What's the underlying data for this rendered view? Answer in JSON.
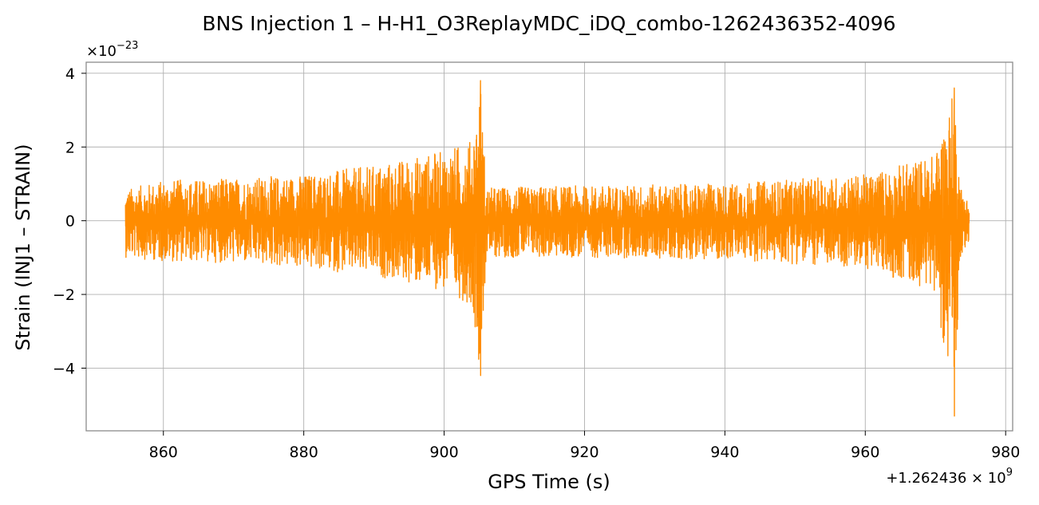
{
  "chart_data": {
    "type": "line",
    "title": "BNS Injection 1 – H-H1_O3ReplayMDC_iDQ_combo-1262436352-4096",
    "xlabel": "GPS Time (s)",
    "ylabel": "Strain (INJ1 – STRAIN)",
    "x_offset_label": {
      "base": "+1.262436 × 10",
      "exponent": "9"
    },
    "y_scale_label": {
      "base": "×10",
      "exponent": "−23"
    },
    "xlim": [
      849,
      981
    ],
    "ylim": [
      -5.7,
      4.3
    ],
    "x_ticks": [
      {
        "value": 860,
        "label": "860"
      },
      {
        "value": 880,
        "label": "880"
      },
      {
        "value": 900,
        "label": "900"
      },
      {
        "value": 920,
        "label": "920"
      },
      {
        "value": 940,
        "label": "940"
      },
      {
        "value": 960,
        "label": "960"
      },
      {
        "value": 980,
        "label": "980"
      }
    ],
    "y_ticks": [
      {
        "value": 4,
        "label": "4"
      },
      {
        "value": 2,
        "label": "2"
      },
      {
        "value": 0,
        "label": "0"
      },
      {
        "value": -2,
        "label": "−2"
      },
      {
        "value": -4,
        "label": "−4"
      }
    ],
    "grid": true,
    "series": [
      {
        "color": "#ff8c00",
        "x_range": [
          854.6,
          974.8
        ],
        "envelope": [
          {
            "x": 854.6,
            "upper": 0.85,
            "lower": -1.0
          },
          {
            "x": 860,
            "upper": 1.1,
            "lower": -1.1
          },
          {
            "x": 870,
            "upper": 1.15,
            "lower": -1.15
          },
          {
            "x": 880,
            "upper": 1.25,
            "lower": -1.3
          },
          {
            "x": 890,
            "upper": 1.5,
            "lower": -1.5
          },
          {
            "x": 900,
            "upper": 1.9,
            "lower": -1.9
          },
          {
            "x": 904,
            "upper": 2.2,
            "lower": -2.3
          },
          {
            "x": 905.2,
            "upper": 3.8,
            "lower": -4.2
          },
          {
            "x": 906,
            "upper": 0.9,
            "lower": -1.0
          },
          {
            "x": 920,
            "upper": 0.95,
            "lower": -1.0
          },
          {
            "x": 940,
            "upper": 1.0,
            "lower": -1.05
          },
          {
            "x": 960,
            "upper": 1.25,
            "lower": -1.3
          },
          {
            "x": 970,
            "upper": 1.8,
            "lower": -1.9
          },
          {
            "x": 972.7,
            "upper": 3.6,
            "lower": -5.3
          },
          {
            "x": 973.5,
            "upper": 1.0,
            "lower": -1.0
          },
          {
            "x": 974.8,
            "upper": 0.5,
            "lower": -0.6
          }
        ],
        "spikes": [
          {
            "x": 905.2,
            "max": 3.8,
            "min": -4.2
          },
          {
            "x": 972.7,
            "max": 3.6,
            "min": -5.3
          }
        ]
      }
    ]
  }
}
